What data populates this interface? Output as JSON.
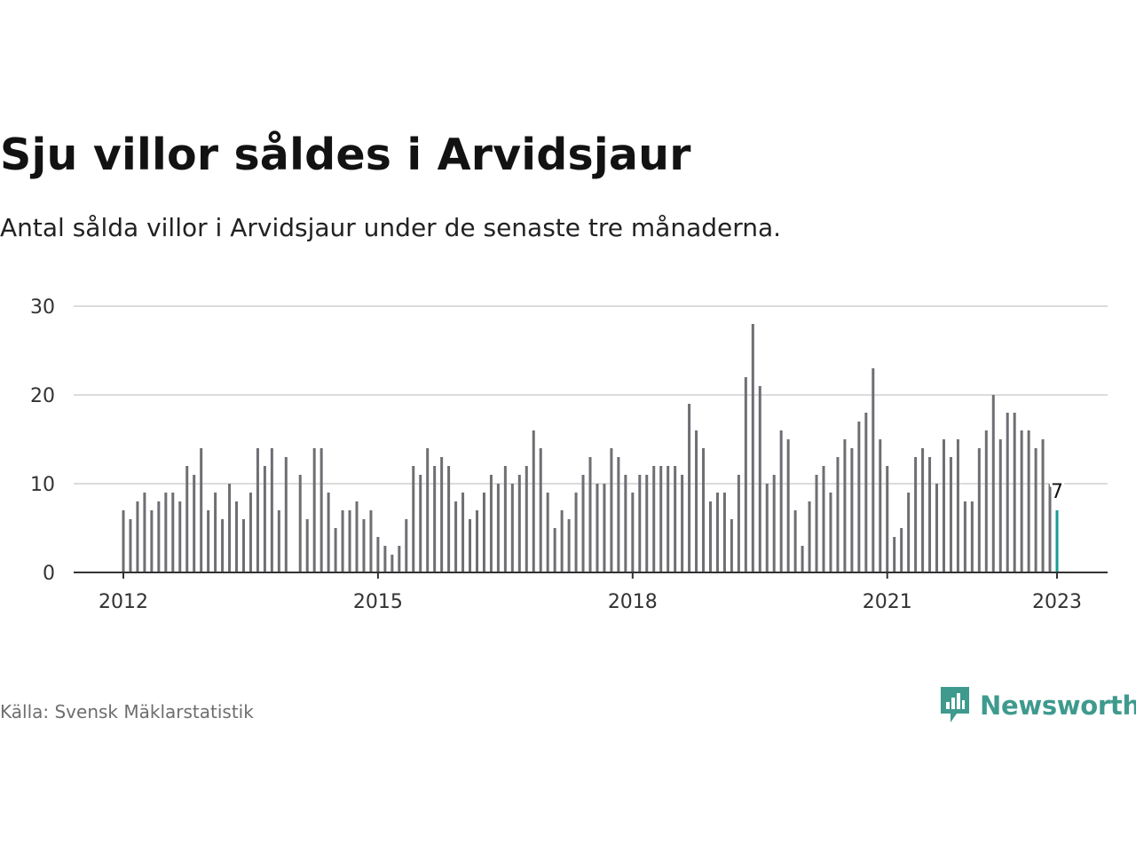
{
  "title": "Sju villor såldes i Arvidsjaur",
  "subtitle": "Antal sålda villor i Arvidsjaur under de senaste tre månaderna.",
  "source": "Källa: Svensk Mäklarstatistik",
  "brand": {
    "name": "Newsworthy",
    "icon": "newsworthy-chart-bubble-icon"
  },
  "colors": {
    "bar": "#6e6e73",
    "highlight": "#1a9b95",
    "grid": "#dcdcdc",
    "axis": "#333333",
    "brand": "#3f9a8e"
  },
  "chart_data": {
    "type": "bar",
    "title": "Sju villor såldes i Arvidsjaur",
    "xlabel": "",
    "ylabel": "",
    "ylim": [
      0,
      30
    ],
    "yticks": [
      0,
      10,
      20,
      30
    ],
    "xtick_labels": [
      "2012",
      "2015",
      "2018",
      "2021",
      "2023"
    ],
    "xtick_index": [
      0,
      36,
      72,
      108,
      132
    ],
    "start": "2012-01",
    "end": "2023-01",
    "highlight_label": "7",
    "grid": true,
    "values": [
      7,
      6,
      8,
      9,
      7,
      8,
      9,
      9,
      8,
      12,
      11,
      14,
      7,
      9,
      6,
      10,
      8,
      6,
      9,
      14,
      12,
      14,
      7,
      13,
      0,
      11,
      6,
      14,
      14,
      9,
      5,
      7,
      7,
      8,
      6,
      7,
      4,
      3,
      2,
      3,
      6,
      12,
      11,
      14,
      12,
      13,
      12,
      8,
      9,
      6,
      7,
      9,
      11,
      10,
      12,
      10,
      11,
      12,
      16,
      14,
      9,
      5,
      7,
      6,
      9,
      11,
      13,
      10,
      10,
      14,
      13,
      11,
      9,
      11,
      11,
      12,
      12,
      12,
      12,
      11,
      19,
      16,
      14,
      8,
      9,
      9,
      6,
      11,
      22,
      28,
      21,
      10,
      11,
      16,
      15,
      7,
      3,
      8,
      11,
      12,
      9,
      13,
      15,
      14,
      17,
      18,
      23,
      15,
      12,
      4,
      5,
      9,
      13,
      14,
      13,
      10,
      15,
      13,
      15,
      8,
      8,
      14,
      16,
      20,
      15,
      18,
      18,
      16,
      16,
      14,
      15,
      10,
      7
    ]
  }
}
